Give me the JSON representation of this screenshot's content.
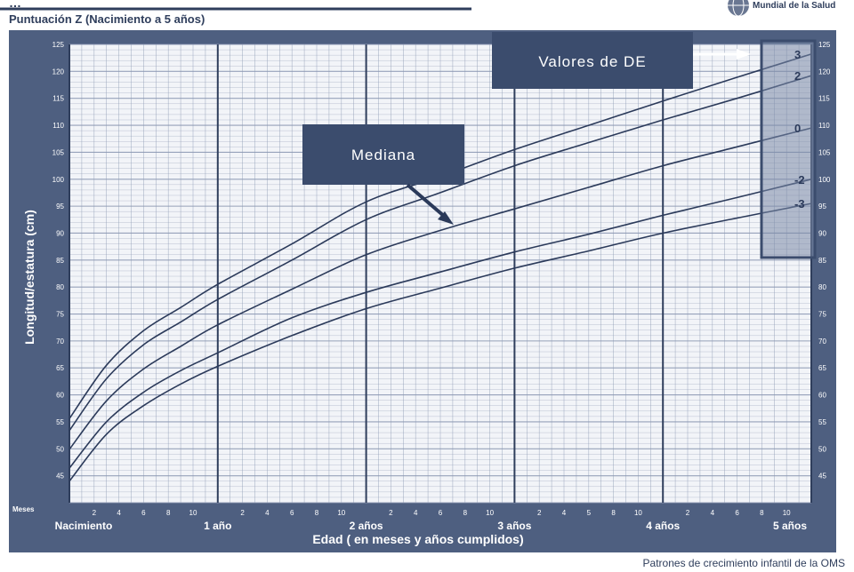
{
  "header": {
    "title_fragment": "…",
    "subtitle": "Puntuación Z (Nacimiento a 5 años)",
    "org_name": "Mundial de la Salud",
    "footer": "Patrones de crecimiento infantil de la OMS"
  },
  "colors": {
    "panel": "#4e5f80",
    "panel_dark": "#3f4f6e",
    "grid_bg": "#f2f4f8",
    "grid_line": "#8c98b2",
    "year_line": "#2f3e5c",
    "curve": "#2b3a5a",
    "callout": "#3b4c6d",
    "highlight_box": "#6f7e9c"
  },
  "callouts": {
    "sd_values": "Valores de DE",
    "median": "Mediana"
  },
  "chart_data": {
    "type": "line",
    "title": "Puntuación Z (Nacimiento a 5 años)",
    "xlabel": "Edad ( en meses y años cumplidos)",
    "ylabel": "Longitud/estatura (cm)",
    "xlim": [
      0,
      60
    ],
    "ylim": [
      40,
      125
    ],
    "y_ticks": [
      45,
      50,
      55,
      60,
      65,
      70,
      75,
      80,
      85,
      90,
      95,
      100,
      105,
      110,
      115,
      120,
      125
    ],
    "right_y_ticks": [
      45,
      50,
      55,
      60,
      65,
      70,
      75,
      80,
      85,
      90,
      95,
      100,
      105,
      110,
      115,
      120,
      125
    ],
    "months_label": "Meses",
    "month_tick_labels": [
      "2",
      "4",
      "6",
      "8",
      "10"
    ],
    "month_tick_labels_year2": [
      "2",
      "4",
      "6",
      "8",
      "10"
    ],
    "month_tick_labels_year3": [
      "2",
      "4",
      "5",
      "8",
      "10"
    ],
    "year_labels": [
      {
        "month": 0,
        "label": "Nacimiento"
      },
      {
        "month": 12,
        "label": "1 año"
      },
      {
        "month": 24,
        "label": "2 años"
      },
      {
        "month": 36,
        "label": "3 años"
      },
      {
        "month": 48,
        "label": "4 años"
      },
      {
        "month": 60,
        "label": "5 años"
      }
    ],
    "grid": true,
    "series": [
      {
        "name": "3",
        "x": [
          0,
          3,
          6,
          9,
          12,
          18,
          24,
          30,
          36,
          42,
          48,
          54,
          60
        ],
        "values": [
          55.6,
          65.5,
          71.9,
          76.2,
          80.5,
          88.0,
          95.8,
          100.5,
          105.5,
          110.0,
          114.5,
          118.9,
          123.2
        ]
      },
      {
        "name": "2",
        "x": [
          0,
          3,
          6,
          9,
          12,
          18,
          24,
          30,
          36,
          42,
          48,
          54,
          60
        ],
        "values": [
          53.4,
          63.0,
          69.3,
          73.5,
          77.7,
          85.0,
          92.5,
          97.5,
          102.5,
          106.8,
          111.0,
          115.0,
          119.2
        ]
      },
      {
        "name": "0",
        "x": [
          0,
          3,
          6,
          9,
          12,
          18,
          24,
          30,
          36,
          42,
          48,
          54,
          60
        ],
        "values": [
          49.9,
          58.9,
          64.8,
          69.0,
          73.0,
          79.6,
          86.0,
          90.5,
          94.5,
          98.5,
          102.5,
          106.0,
          109.5
        ]
      },
      {
        "name": "-2",
        "x": [
          0,
          3,
          6,
          9,
          12,
          18,
          24,
          30,
          36,
          42,
          48,
          54,
          60
        ],
        "values": [
          46.4,
          55.0,
          60.5,
          64.5,
          67.8,
          74.3,
          79.0,
          82.8,
          86.5,
          89.8,
          93.3,
          96.6,
          100.0
        ]
      },
      {
        "name": "-3",
        "x": [
          0,
          3,
          6,
          9,
          12,
          18,
          24,
          30,
          36,
          42,
          48,
          54,
          60
        ],
        "values": [
          44.0,
          52.7,
          58.0,
          62.0,
          65.3,
          71.0,
          76.0,
          79.8,
          83.5,
          86.7,
          90.0,
          92.8,
          95.5
        ]
      }
    ]
  }
}
